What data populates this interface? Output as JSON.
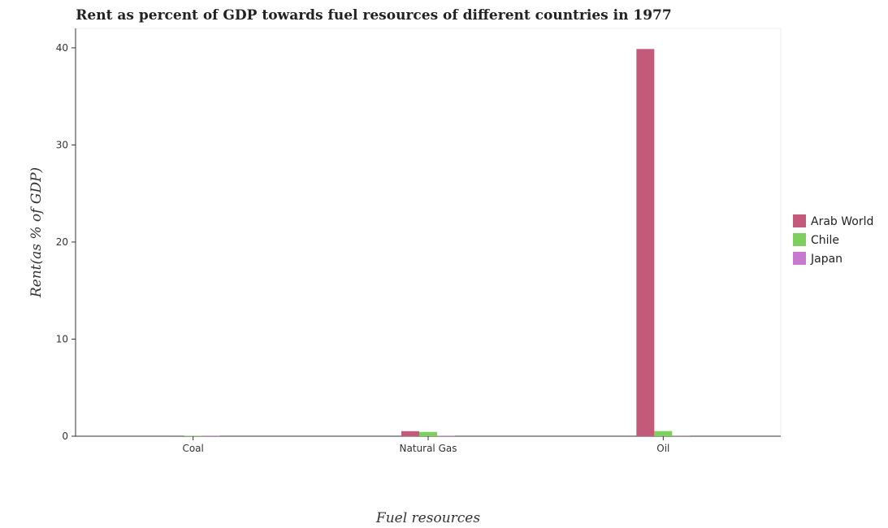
{
  "chart_data": {
    "type": "bar",
    "title": "Rent as percent of GDP towards fuel resources of different countries in 1977",
    "xlabel": "Fuel resources",
    "ylabel": "Rent(as % of GDP)",
    "categories": [
      "Coal",
      "Natural Gas",
      "Oil"
    ],
    "series": [
      {
        "name": "Arab World",
        "color": "#c45a7a",
        "values": [
          0.001,
          0.52,
          39.88
        ]
      },
      {
        "name": "Chile",
        "color": "#7fcf5f",
        "values": [
          0.05,
          0.44,
          0.53
        ]
      },
      {
        "name": "Japan",
        "color": "#c779d0",
        "values": [
          0.03,
          0.03,
          0.02
        ]
      }
    ],
    "ylim": [
      0,
      42
    ],
    "yticks": [
      0,
      10,
      20,
      30,
      40
    ],
    "grid": false,
    "legend_position": "right"
  }
}
